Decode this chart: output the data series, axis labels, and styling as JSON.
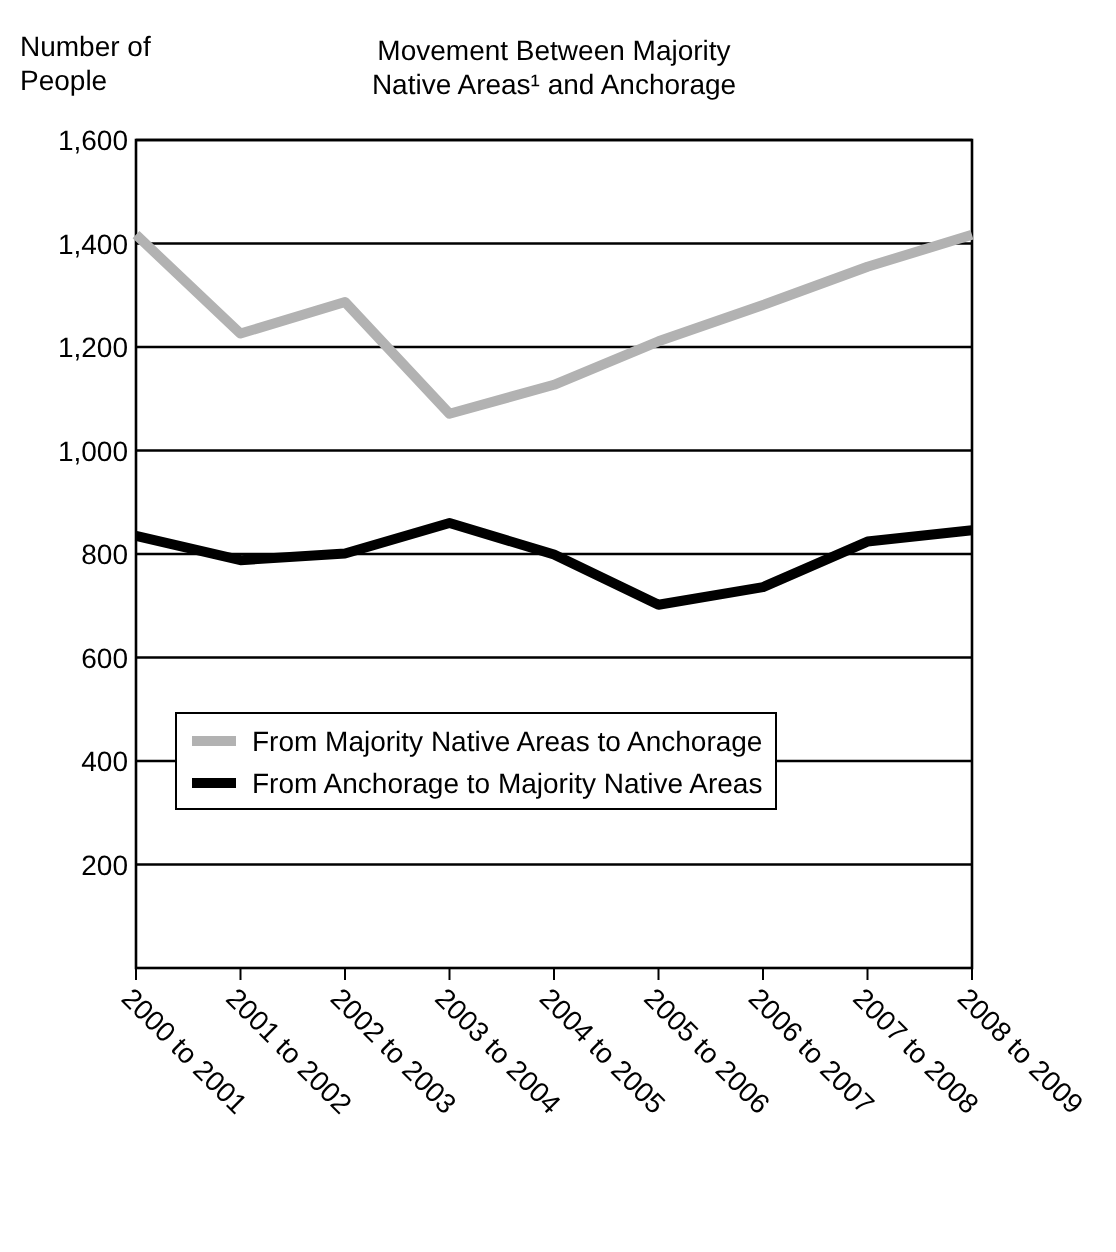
{
  "chart_data": {
    "type": "line",
    "title": "Movement Between Majority Native Areas¹ and Anchorage",
    "ylabel": "Number of People",
    "categories": [
      "2000 to 2001",
      "2001 to 2002",
      "2002 to 2003",
      "2003 to 2004",
      "2004 to 2005",
      "2005 to 2006",
      "2006 to 2007",
      "2007 to 2008",
      "2008 to 2009"
    ],
    "series": [
      {
        "name": "From Majority Native Areas to Anchorage",
        "color": "#b2b2b2",
        "values": [
          1417,
          1226,
          1287,
          1071,
          1127,
          1211,
          1281,
          1355,
          1417
        ]
      },
      {
        "name": "From Anchorage to Majority Native Areas",
        "color": "#000000",
        "values": [
          835,
          788,
          801,
          860,
          799,
          702,
          736,
          824,
          846
        ]
      }
    ],
    "ylim": [
      0,
      1600
    ],
    "yticks": [
      200,
      400,
      600,
      800,
      "1,000",
      "1,200",
      "1,400",
      "1,600"
    ],
    "grid": "y",
    "legend": "bottom left",
    "marker": "none",
    "line_style": "solid"
  }
}
